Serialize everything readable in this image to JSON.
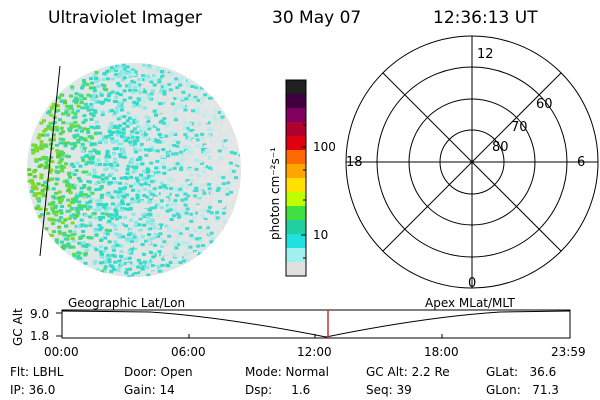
{
  "header": {
    "instrument": "Ultraviolet Imager",
    "date": "30 May 07",
    "time": "12:36:13 UT"
  },
  "colorbar": {
    "label": "photon cm⁻²s⁻¹",
    "ticks": [
      "100",
      "10"
    ],
    "colors": [
      "#202020",
      "#400040",
      "#800060",
      "#b00030",
      "#e00010",
      "#ff6a00",
      "#ffa500",
      "#ffe000",
      "#c0ff00",
      "#40e040",
      "#20d0a0",
      "#20e0e0",
      "#a0f0f0",
      "#e0e0e0"
    ]
  },
  "polar_plot": {
    "mlt_labels": [
      "12",
      "18",
      "6",
      "0"
    ],
    "lat_labels": [
      "60",
      "70",
      "80"
    ]
  },
  "timeline": {
    "left_label": "Geographic Lat/Lon",
    "right_label": "Apex MLat/MLT",
    "axis_title": "GC Alt",
    "y_ticks": [
      "9.0",
      "1.8"
    ],
    "x_ticks": [
      "00:00",
      "06:00",
      "12:00",
      "18:00",
      "23:59"
    ],
    "marker_color": "#cc3333"
  },
  "info": {
    "flt": "Flt: LBHL",
    "ip": "IP: 36.0",
    "door": "Door: Open",
    "gain": "Gain: 14",
    "mode": "Mode: Normal",
    "dsp": "Dsp:     1.6",
    "gcalt": "GC Alt: 2.2 Re",
    "seq": "Seq: 39",
    "glat": "GLat:   36.6",
    "glon": "GLon:   71.3"
  }
}
